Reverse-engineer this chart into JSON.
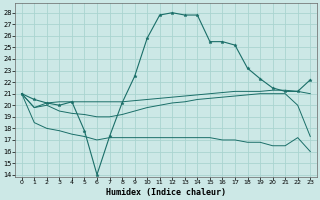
{
  "xlabel": "Humidex (Indice chaleur)",
  "bg_color": "#cce8e6",
  "grid_color": "#aad4d0",
  "line_color": "#1a6e68",
  "xlim": [
    -0.5,
    23.5
  ],
  "ylim": [
    13.8,
    28.8
  ],
  "xticks": [
    0,
    1,
    2,
    3,
    4,
    5,
    6,
    7,
    8,
    9,
    10,
    11,
    12,
    13,
    14,
    15,
    16,
    17,
    18,
    19,
    20,
    21,
    22,
    23
  ],
  "yticks": [
    14,
    15,
    16,
    17,
    18,
    19,
    20,
    21,
    22,
    23,
    24,
    25,
    26,
    27,
    28
  ],
  "series_main": [
    21.0,
    20.5,
    20.2,
    20.0,
    20.3,
    17.8,
    14.0,
    17.3,
    20.2,
    22.5,
    25.8,
    27.8,
    28.0,
    27.8,
    27.8,
    25.5,
    25.5,
    25.2,
    23.2,
    22.3,
    21.5,
    21.2,
    21.2,
    22.2
  ],
  "series_line2": [
    21.0,
    19.8,
    20.2,
    20.3,
    20.3,
    20.3,
    20.3,
    20.3,
    20.3,
    20.4,
    20.5,
    20.6,
    20.7,
    20.8,
    20.9,
    21.0,
    21.1,
    21.2,
    21.2,
    21.2,
    21.3,
    21.3,
    21.2,
    21.0
  ],
  "series_line3": [
    21.0,
    19.8,
    20.0,
    19.5,
    19.3,
    19.2,
    19.0,
    19.0,
    19.2,
    19.5,
    19.8,
    20.0,
    20.2,
    20.3,
    20.5,
    20.6,
    20.7,
    20.8,
    20.9,
    21.0,
    21.0,
    21.0,
    20.0,
    17.3
  ],
  "series_lower": [
    21.0,
    18.5,
    18.0,
    17.8,
    17.5,
    17.3,
    17.0,
    17.2,
    17.2,
    17.2,
    17.2,
    17.2,
    17.2,
    17.2,
    17.2,
    17.2,
    17.0,
    17.0,
    16.8,
    16.8,
    16.5,
    16.5,
    17.2,
    16.0
  ]
}
